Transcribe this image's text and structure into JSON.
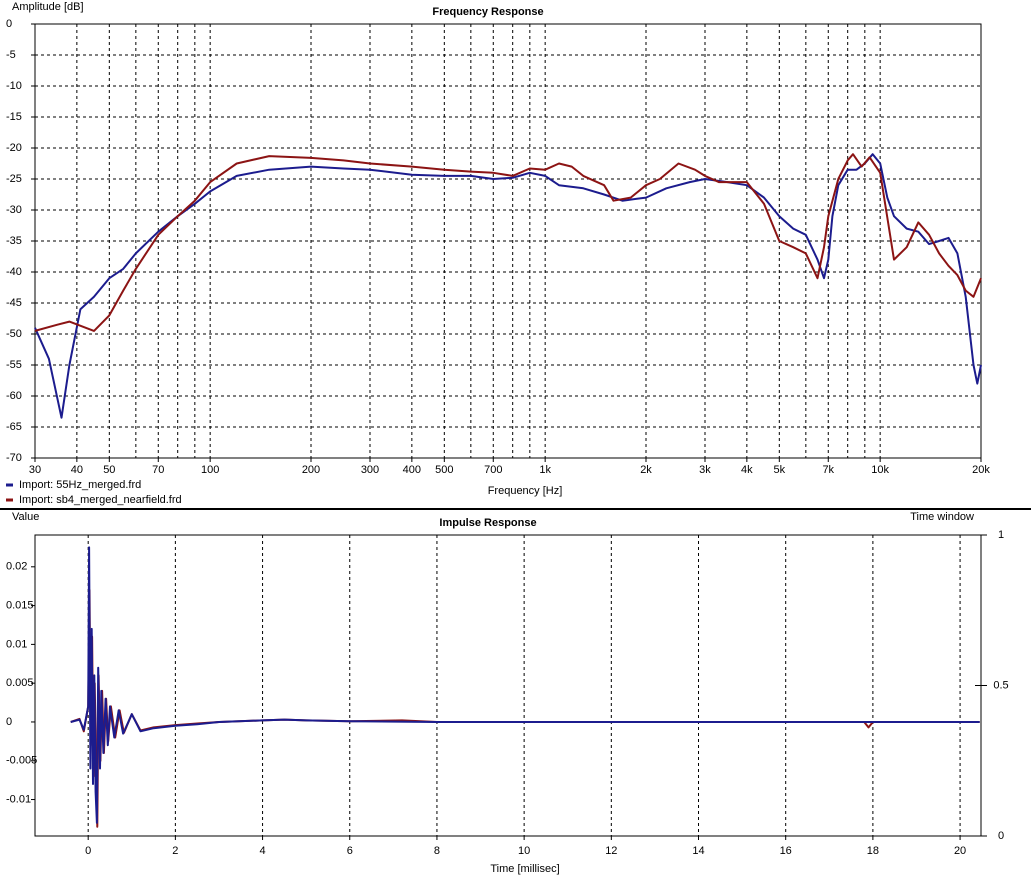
{
  "chart_data": [
    {
      "type": "line",
      "title": "Frequency Response",
      "y_label": "Amplitude [dB]",
      "x_label": "Frequency [Hz]",
      "xscale": "log",
      "xlim": [
        30,
        20000
      ],
      "ylim": [
        -70,
        0
      ],
      "xticks": [
        30,
        40,
        50,
        70,
        100,
        200,
        300,
        400,
        500,
        700,
        {
          "value": 1000,
          "label": "1k"
        },
        {
          "value": 2000,
          "label": "2k"
        },
        {
          "value": 3000,
          "label": "3k"
        },
        {
          "value": 4000,
          "label": "4k"
        },
        {
          "value": 5000,
          "label": "5k"
        },
        {
          "value": 7000,
          "label": "7k"
        },
        {
          "value": 10000,
          "label": "10k"
        },
        {
          "value": 20000,
          "label": "20k"
        }
      ],
      "xgrid_minor": [
        60,
        80,
        90,
        600,
        800,
        900,
        6000,
        8000,
        9000
      ],
      "yticks": [
        0,
        -5,
        -10,
        -15,
        -20,
        -25,
        -30,
        -35,
        -40,
        -45,
        -50,
        -55,
        -60,
        -65,
        -70
      ],
      "grid": "both",
      "legend": "below-left",
      "series": [
        {
          "name": "Import: 55Hz_merged.frd",
          "color": "#1c1c8e",
          "x": [
            30,
            33,
            36,
            38,
            41,
            45,
            50,
            55,
            60,
            70,
            80,
            90,
            100,
            120,
            150,
            200,
            250,
            300,
            400,
            500,
            600,
            700,
            800,
            900,
            1000,
            1100,
            1300,
            1500,
            1700,
            2000,
            2300,
            2700,
            3000,
            3500,
            4000,
            4500,
            5000,
            5500,
            6000,
            6500,
            6800,
            7000,
            7200,
            7500,
            8000,
            8500,
            9000,
            9500,
            10000,
            10500,
            11000,
            12000,
            13000,
            14000,
            15000,
            16000,
            17000,
            18000,
            19000,
            19500,
            20000
          ],
          "values": [
            -49,
            -54,
            -63.5,
            -55,
            -46,
            -44,
            -41,
            -39.5,
            -37,
            -33.5,
            -31,
            -29,
            -27,
            -24.5,
            -23.5,
            -23,
            -23.3,
            -23.5,
            -24.3,
            -24.5,
            -24.5,
            -25,
            -24.8,
            -24,
            -24.5,
            -26,
            -26.5,
            -27.5,
            -28.5,
            -28,
            -26.5,
            -25.5,
            -25,
            -25.5,
            -26,
            -28,
            -31,
            -33,
            -34,
            -38,
            -41,
            -38,
            -31,
            -26,
            -23.5,
            -23.5,
            -22.5,
            -21,
            -22.5,
            -28,
            -31,
            -33,
            -33.5,
            -35.5,
            -35,
            -34.5,
            -37,
            -44,
            -55,
            -58,
            -55
          ]
        },
        {
          "name": "Import: sb4_merged_nearfield.frd",
          "color": "#8c1414",
          "x": [
            30,
            35,
            38,
            45,
            50,
            55,
            60,
            70,
            80,
            90,
            100,
            120,
            150,
            200,
            250,
            300,
            400,
            500,
            600,
            700,
            800,
            900,
            1000,
            1100,
            1200,
            1300,
            1500,
            1600,
            1800,
            2000,
            2200,
            2500,
            2800,
            3000,
            3300,
            4000,
            4500,
            5000,
            5500,
            6000,
            6500,
            6800,
            7000,
            7500,
            8000,
            8300,
            8800,
            9300,
            10000,
            11000,
            12000,
            13000,
            14000,
            15000,
            16000,
            17000,
            18000,
            19000,
            20000
          ],
          "values": [
            -49.5,
            -48.5,
            -48,
            -49.5,
            -47,
            -43,
            -39.5,
            -34,
            -31,
            -28.5,
            -25.5,
            -22.5,
            -21.3,
            -21.6,
            -22,
            -22.5,
            -23,
            -23.5,
            -23.8,
            -24,
            -24.5,
            -23.3,
            -23.5,
            -22.5,
            -23,
            -24.5,
            -26,
            -28.5,
            -28,
            -26,
            -25,
            -22.5,
            -23.5,
            -24.5,
            -25.5,
            -25.5,
            -29,
            -35,
            -36,
            -37,
            -41,
            -36,
            -31,
            -25,
            -22,
            -21,
            -23,
            -21.5,
            -24,
            -38,
            -36,
            -32,
            -34,
            -37,
            -39,
            -40.5,
            -43,
            -44,
            -41
          ]
        }
      ]
    },
    {
      "type": "line",
      "title": "Impulse Response",
      "y_label": "Value",
      "y2_label": "Time window",
      "x_label": "Time [millisec]",
      "xlim": [
        -1.22,
        20.48
      ],
      "ylim": [
        -0.0147,
        0.0241
      ],
      "y2lim": [
        0,
        1
      ],
      "xticks": [
        0,
        2,
        4,
        6,
        8,
        10,
        12,
        14,
        16,
        18,
        20
      ],
      "yticks": [
        0.02,
        0.015,
        0.01,
        0.005,
        0,
        -0.005,
        -0.01
      ],
      "y2ticks": [
        1,
        0.5,
        0
      ],
      "grid": "x",
      "series": [
        {
          "name": "Import: sb4_merged_nearfield.frd",
          "color": "#8c1414",
          "x": [
            -0.4,
            -0.2,
            -0.1,
            0,
            0.03,
            0.06,
            0.09,
            0.12,
            0.15,
            0.18,
            0.21,
            0.24,
            0.28,
            0.32,
            0.36,
            0.41,
            0.46,
            0.52,
            0.62,
            0.72,
            0.82,
            1,
            1.2,
            1.5,
            2,
            2.5,
            3,
            4,
            4.5,
            5,
            6,
            7.2,
            8,
            10,
            14,
            17.8,
            17.9,
            18,
            20,
            20.45
          ],
          "values": [
            0,
            0.0004,
            -0.0012,
            0.002,
            0.017,
            -0.003,
            0.011,
            -0.007,
            0.005,
            -0.005,
            -0.0135,
            0.006,
            -0.005,
            0.004,
            -0.004,
            0.003,
            -0.0025,
            0.002,
            -0.002,
            0.0015,
            -0.0014,
            0.001,
            -0.0011,
            -0.0007,
            -0.0004,
            -0.0002,
            0,
            0.0002,
            0.0003,
            0.0002,
            0.0001,
            0.0002,
            0,
            0,
            0,
            0,
            -0.0007,
            0,
            0,
            0
          ]
        },
        {
          "name": "Import: 55Hz_merged.frd",
          "color": "#1c1c8e",
          "x": [
            -0.4,
            -0.2,
            -0.1,
            0,
            0.02,
            0.05,
            0.08,
            0.11,
            0.14,
            0.17,
            0.2,
            0.23,
            0.27,
            0.3,
            0.35,
            0.4,
            0.45,
            0.5,
            0.6,
            0.7,
            0.8,
            1,
            1.2,
            1.5,
            2,
            2.5,
            3,
            4,
            4.5,
            5,
            6,
            8,
            10,
            14,
            17.8,
            18,
            20,
            20.45
          ],
          "values": [
            0,
            0.0003,
            -0.001,
            0.002,
            0.0225,
            -0.006,
            0.012,
            -0.008,
            0.006,
            -0.009,
            -0.013,
            0.007,
            -0.006,
            0.004,
            -0.004,
            0.003,
            -0.003,
            0.002,
            -0.002,
            0.0015,
            -0.0015,
            0.001,
            -0.0012,
            -0.0008,
            -0.0005,
            -0.0003,
            0,
            0.0002,
            0.0003,
            0.0002,
            0.0001,
            0,
            0,
            0,
            0,
            0,
            0,
            0
          ]
        }
      ]
    }
  ]
}
